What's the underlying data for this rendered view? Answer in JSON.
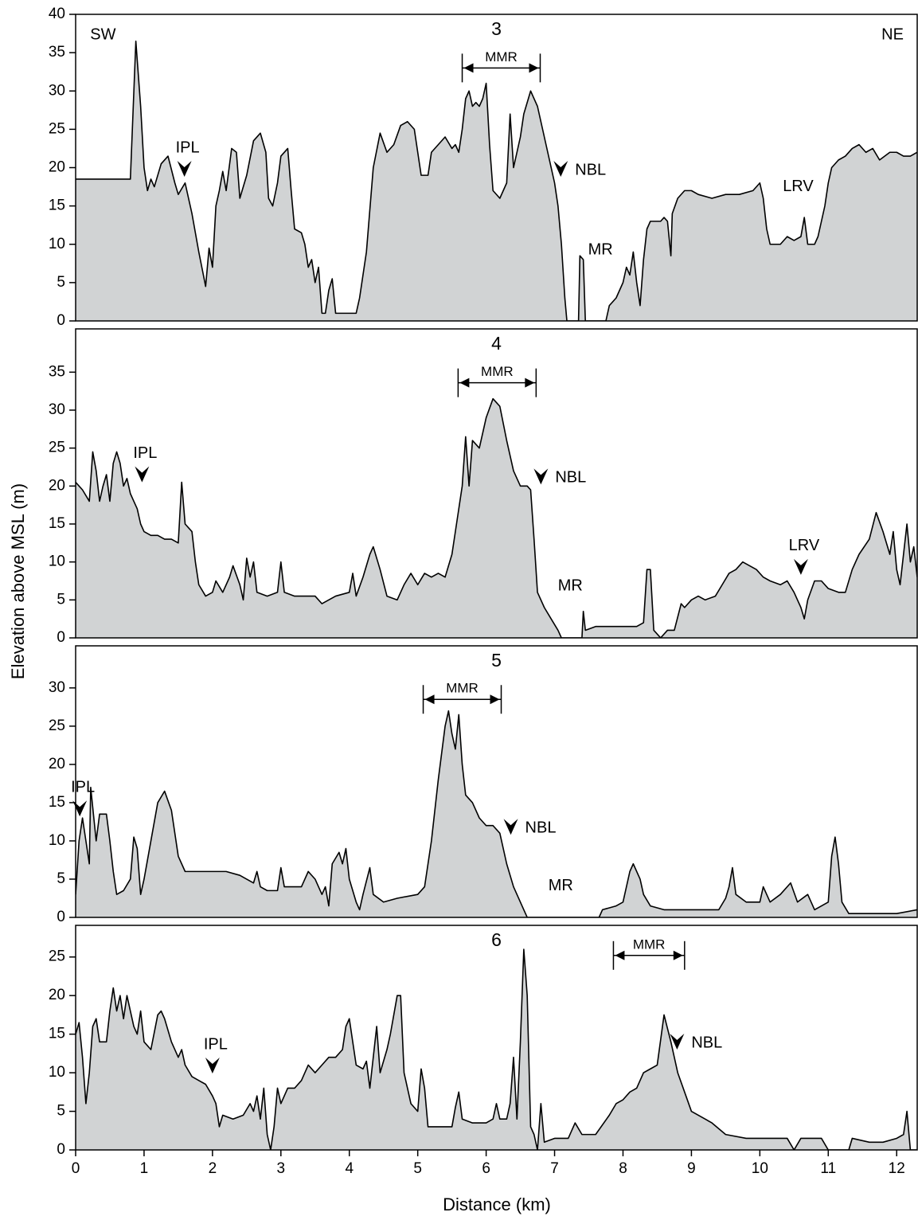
{
  "ylabel": "Elevation above MSL (m)",
  "xlabel": "Distance (km)",
  "chart_data": [
    {
      "type": "area",
      "title": "3",
      "color": "#d1d3d4",
      "line_color": "#000000",
      "xlim": [
        0,
        12.3
      ],
      "ylim": [
        0,
        40
      ],
      "yticks": [
        0,
        5,
        10,
        15,
        20,
        25,
        30,
        35,
        40
      ],
      "x": [
        0,
        0.78,
        0.8,
        0.88,
        0.95,
        1.0,
        1.05,
        1.1,
        1.15,
        1.25,
        1.35,
        1.45,
        1.5,
        1.6,
        1.7,
        1.8,
        1.9,
        1.95,
        2.0,
        2.05,
        2.1,
        2.15,
        2.2,
        2.28,
        2.35,
        2.4,
        2.5,
        2.6,
        2.7,
        2.78,
        2.82,
        2.88,
        2.95,
        3.0,
        3.1,
        3.15,
        3.2,
        3.3,
        3.35,
        3.4,
        3.45,
        3.5,
        3.55,
        3.6,
        3.65,
        3.7,
        3.75,
        3.8,
        4.1,
        4.15,
        4.25,
        4.35,
        4.45,
        4.55,
        4.65,
        4.75,
        4.85,
        4.95,
        5.0,
        5.05,
        5.15,
        5.2,
        5.3,
        5.4,
        5.5,
        5.55,
        5.6,
        5.65,
        5.7,
        5.75,
        5.8,
        5.85,
        5.9,
        5.95,
        6.0,
        6.05,
        6.1,
        6.2,
        6.25,
        6.3,
        6.35,
        6.4,
        6.5,
        6.55,
        6.65,
        6.75,
        6.85,
        6.95,
        7.0,
        7.05,
        7.1,
        7.15,
        7.18,
        7.35,
        7.37,
        7.42,
        7.45,
        7.75,
        7.8,
        7.9,
        8.0,
        8.05,
        8.1,
        8.15,
        8.2,
        8.25,
        8.3,
        8.35,
        8.4,
        8.55,
        8.6,
        8.65,
        8.7,
        8.72,
        8.8,
        8.9,
        9.0,
        9.1,
        9.3,
        9.5,
        9.7,
        9.9,
        10.0,
        10.05,
        10.1,
        10.15,
        10.3,
        10.4,
        10.5,
        10.6,
        10.65,
        10.7,
        10.8,
        10.85,
        10.95,
        11.0,
        11.05,
        11.15,
        11.25,
        11.35,
        11.45,
        11.55,
        11.65,
        11.75,
        11.9,
        12.0,
        12.1,
        12.2,
        12.3
      ],
      "values": [
        18.5,
        18.5,
        18.5,
        36.5,
        28,
        20,
        17,
        18.5,
        17.5,
        20.5,
        21.5,
        18,
        16.5,
        18,
        14,
        9,
        4.5,
        9.5,
        7,
        15,
        17,
        19.5,
        17,
        22.5,
        22,
        16,
        19,
        23.5,
        24.5,
        22,
        16,
        15,
        18,
        21.5,
        22.5,
        17,
        12,
        11.5,
        10,
        7,
        8,
        5,
        7,
        1,
        1,
        4,
        5.5,
        1,
        1,
        3,
        9,
        20,
        24.5,
        22,
        23,
        25.5,
        26,
        25,
        22,
        19,
        19,
        22,
        23,
        24,
        22.5,
        23,
        22,
        25,
        29,
        30,
        28,
        28.5,
        28,
        29,
        31,
        23,
        17,
        16,
        17,
        18,
        27,
        20,
        24,
        27,
        30,
        28,
        24,
        20,
        18,
        15,
        10,
        3,
        0,
        0,
        8.5,
        8,
        0,
        0,
        2,
        3,
        5,
        7,
        6,
        9,
        5,
        2,
        8,
        12,
        13,
        13,
        13.5,
        13,
        8.5,
        14,
        16,
        17,
        17,
        16.5,
        16,
        16.5,
        16.5,
        17,
        18,
        16,
        12,
        10,
        10,
        11,
        10.5,
        11,
        13.5,
        10,
        10,
        11,
        15,
        18,
        20,
        21,
        21.5,
        22.5,
        23,
        22,
        22.5,
        21,
        22,
        22,
        21.5,
        21.5,
        22
      ],
      "annotations": [
        {
          "text": "SW",
          "x": 0.4,
          "y": 37.3,
          "kind": "label"
        },
        {
          "text": "NE",
          "x": 11.94,
          "y": 37.3,
          "kind": "label"
        },
        {
          "text": "MMR",
          "x": [
            5.65,
            6.79
          ],
          "y": 33,
          "kind": "span"
        },
        {
          "text": "IPL",
          "x": 1.59,
          "y": 18.8,
          "kind": "arrow",
          "side": "above"
        },
        {
          "text": "NBL",
          "x": 7.09,
          "y": 18.8,
          "kind": "arrow",
          "side": "right"
        },
        {
          "text": "MR",
          "x": 7.67,
          "y": 9.2,
          "kind": "label"
        },
        {
          "text": "LRV",
          "x": 10.56,
          "y": 17.5,
          "kind": "label"
        }
      ]
    },
    {
      "type": "area",
      "title": "4",
      "color": "#d1d3d4",
      "line_color": "#000000",
      "xlim": [
        0,
        12.3
      ],
      "ylim": [
        0,
        40.7
      ],
      "yticks": [
        0,
        5,
        10,
        15,
        20,
        25,
        30,
        35
      ],
      "x": [
        0,
        0.1,
        0.2,
        0.25,
        0.3,
        0.35,
        0.4,
        0.45,
        0.5,
        0.55,
        0.6,
        0.65,
        0.7,
        0.75,
        0.8,
        0.85,
        0.9,
        0.95,
        1.0,
        1.1,
        1.2,
        1.3,
        1.4,
        1.5,
        1.55,
        1.6,
        1.7,
        1.75,
        1.8,
        1.9,
        2.0,
        2.05,
        2.15,
        2.25,
        2.3,
        2.4,
        2.45,
        2.5,
        2.55,
        2.6,
        2.65,
        2.8,
        2.95,
        3.0,
        3.05,
        3.2,
        3.5,
        3.6,
        3.8,
        4.0,
        4.05,
        4.1,
        4.2,
        4.3,
        4.35,
        4.45,
        4.55,
        4.7,
        4.8,
        4.9,
        5.0,
        5.1,
        5.2,
        5.3,
        5.4,
        5.5,
        5.6,
        5.65,
        5.7,
        5.75,
        5.8,
        5.9,
        6.0,
        6.1,
        6.2,
        6.3,
        6.4,
        6.5,
        6.6,
        6.65,
        6.7,
        6.75,
        6.85,
        6.95,
        7.05,
        7.1,
        7.4,
        7.42,
        7.45,
        7.6,
        7.8,
        8.0,
        8.2,
        8.3,
        8.35,
        8.4,
        8.45,
        8.55,
        8.65,
        8.75,
        8.85,
        8.9,
        9.0,
        9.1,
        9.2,
        9.35,
        9.45,
        9.55,
        9.65,
        9.75,
        9.85,
        9.95,
        10.05,
        10.15,
        10.3,
        10.4,
        10.5,
        10.6,
        10.65,
        10.7,
        10.8,
        10.9,
        11.0,
        11.15,
        11.25,
        11.35,
        11.45,
        11.6,
        11.7,
        11.8,
        11.9,
        11.95,
        12.0,
        12.05,
        12.1,
        12.15,
        12.2,
        12.25,
        12.3
      ],
      "values": [
        20.5,
        19.5,
        18,
        24.5,
        22,
        18,
        20,
        21.5,
        18,
        23,
        24.5,
        23,
        20,
        21,
        19,
        18,
        17,
        15,
        14,
        13.5,
        13.5,
        13,
        13,
        12.5,
        20.5,
        15,
        14,
        10,
        7,
        5.5,
        6,
        7.5,
        6,
        8,
        9.5,
        7,
        5,
        10.5,
        8,
        10,
        6,
        5.5,
        6,
        10,
        6,
        5.5,
        5.5,
        4.5,
        5.5,
        6,
        8.5,
        5.5,
        8,
        11,
        12,
        9,
        5.5,
        5,
        7,
        8.5,
        7,
        8.5,
        8,
        8.5,
        8,
        11,
        17,
        20,
        26.5,
        20,
        26,
        25,
        29,
        31.5,
        30.5,
        26,
        22,
        20,
        20,
        19.5,
        13,
        6,
        4,
        2.5,
        1,
        0,
        0,
        3.5,
        1,
        1.5,
        1.5,
        1.5,
        1.5,
        2,
        9,
        9,
        1,
        0,
        1,
        1,
        4.5,
        4,
        5,
        5.5,
        5,
        5.5,
        7,
        8.5,
        9,
        10,
        9.5,
        9,
        8,
        7.5,
        7,
        7.5,
        6,
        4,
        2.5,
        5,
        7.5,
        7.5,
        6.5,
        6,
        6,
        9,
        11,
        13,
        16.5,
        14,
        11,
        14,
        9,
        7,
        11,
        15,
        10,
        12,
        8
      ],
      "annotations": [
        {
          "text": "MMR",
          "x": [
            5.59,
            6.73
          ],
          "y": 33.6,
          "kind": "span"
        },
        {
          "text": "IPL",
          "x": 0.97,
          "y": 20.5,
          "kind": "arrow",
          "side": "above"
        },
        {
          "text": "NBL",
          "x": 6.8,
          "y": 20.2,
          "kind": "arrow",
          "side": "right"
        },
        {
          "text": "MR",
          "x": 7.23,
          "y": 6.8,
          "kind": "label"
        },
        {
          "text": "LRV",
          "x": 10.6,
          "y": 8.3,
          "kind": "arrow",
          "side": "above"
        }
      ]
    },
    {
      "type": "area",
      "title": "5",
      "color": "#d1d3d4",
      "line_color": "#000000",
      "xlim": [
        0,
        12.3
      ],
      "ylim": [
        0,
        35.5
      ],
      "yticks": [
        0,
        5,
        10,
        15,
        20,
        25,
        30
      ],
      "x": [
        0,
        0.05,
        0.1,
        0.15,
        0.2,
        0.22,
        0.3,
        0.35,
        0.45,
        0.5,
        0.55,
        0.6,
        0.7,
        0.8,
        0.85,
        0.9,
        0.95,
        1.0,
        1.1,
        1.2,
        1.3,
        1.4,
        1.5,
        1.6,
        1.8,
        2.0,
        2.2,
        2.4,
        2.6,
        2.65,
        2.7,
        2.8,
        2.95,
        3.0,
        3.05,
        3.3,
        3.4,
        3.5,
        3.6,
        3.65,
        3.7,
        3.75,
        3.85,
        3.9,
        3.95,
        4.0,
        4.1,
        4.15,
        4.2,
        4.3,
        4.35,
        4.5,
        4.7,
        5.0,
        5.1,
        5.2,
        5.3,
        5.4,
        5.45,
        5.5,
        5.55,
        5.6,
        5.65,
        5.7,
        5.8,
        5.9,
        6.0,
        6.1,
        6.2,
        6.3,
        6.4,
        6.5,
        6.55,
        6.6,
        7.65,
        7.7,
        7.9,
        8.0,
        8.1,
        8.15,
        8.25,
        8.3,
        8.4,
        8.6,
        8.8,
        9.0,
        9.2,
        9.4,
        9.5,
        9.55,
        9.6,
        9.65,
        9.8,
        10.0,
        10.05,
        10.15,
        10.3,
        10.45,
        10.55,
        10.7,
        10.8,
        11.0,
        11.05,
        11.1,
        11.15,
        11.2,
        11.3,
        11.6,
        12.0,
        12.3
      ],
      "values": [
        3,
        10,
        13,
        10,
        7,
        17,
        10,
        13.5,
        13.5,
        10,
        6,
        3,
        3.5,
        5,
        10.5,
        9,
        3,
        5,
        10,
        15,
        16.5,
        14,
        8,
        6,
        6,
        6,
        6,
        5.5,
        4.5,
        6,
        4,
        3.5,
        3.5,
        6.5,
        4,
        4,
        6,
        5,
        3,
        4,
        1.5,
        7,
        8.5,
        7,
        9,
        5,
        2,
        1,
        3,
        6.5,
        3,
        2,
        2.5,
        3,
        4,
        10,
        18,
        25,
        27,
        24,
        22,
        26.5,
        20,
        16,
        15,
        13,
        12,
        12,
        11,
        7,
        4,
        2,
        1,
        0,
        0,
        1,
        1.5,
        2,
        6,
        7,
        5,
        3,
        1.5,
        1,
        1,
        1,
        1,
        1,
        2.5,
        4,
        6.5,
        3,
        2,
        2,
        4,
        2,
        3,
        4.5,
        2,
        3,
        1,
        2,
        8,
        10.5,
        7,
        2,
        0.5,
        0.5,
        0.5,
        1
      ],
      "annotations": [
        {
          "text": "MMR",
          "x": [
            5.08,
            6.22
          ],
          "y": 28.5,
          "kind": "span"
        },
        {
          "text": "IPL",
          "x": 0.06,
          "y": 13.2,
          "kind": "arrow",
          "side": "above"
        },
        {
          "text": "NBL",
          "x": 6.36,
          "y": 10.8,
          "kind": "arrow",
          "side": "right"
        },
        {
          "text": "MR",
          "x": 7.09,
          "y": 4.1,
          "kind": "label"
        }
      ]
    },
    {
      "type": "area",
      "title": "6",
      "color": "#d1d3d4",
      "line_color": "#000000",
      "xlim": [
        0,
        12.3
      ],
      "ylim": [
        0,
        29.1
      ],
      "yticks": [
        0,
        5,
        10,
        15,
        20,
        25
      ],
      "xticks": [
        0,
        1,
        2,
        3,
        4,
        5,
        6,
        7,
        8,
        9,
        10,
        11,
        12
      ],
      "x": [
        0,
        0.05,
        0.1,
        0.15,
        0.2,
        0.25,
        0.3,
        0.35,
        0.45,
        0.5,
        0.55,
        0.6,
        0.65,
        0.7,
        0.75,
        0.85,
        0.9,
        0.95,
        1.0,
        1.1,
        1.2,
        1.25,
        1.3,
        1.4,
        1.5,
        1.55,
        1.6,
        1.7,
        1.8,
        1.9,
        2.0,
        2.05,
        2.1,
        2.15,
        2.3,
        2.45,
        2.55,
        2.6,
        2.65,
        2.7,
        2.75,
        2.8,
        2.85,
        2.9,
        2.95,
        3.0,
        3.1,
        3.2,
        3.3,
        3.4,
        3.5,
        3.6,
        3.7,
        3.8,
        3.9,
        3.95,
        4.0,
        4.05,
        4.1,
        4.2,
        4.25,
        4.3,
        4.4,
        4.45,
        4.55,
        4.6,
        4.7,
        4.75,
        4.8,
        4.9,
        5.0,
        5.05,
        5.1,
        5.15,
        5.5,
        5.55,
        5.6,
        5.65,
        5.8,
        6.0,
        6.1,
        6.15,
        6.2,
        6.3,
        6.35,
        6.4,
        6.45,
        6.5,
        6.55,
        6.6,
        6.65,
        6.7,
        6.75,
        6.8,
        6.85,
        7.0,
        7.2,
        7.3,
        7.4,
        7.6,
        7.8,
        7.9,
        8.0,
        8.1,
        8.2,
        8.3,
        8.4,
        8.5,
        8.6,
        8.7,
        8.8,
        8.9,
        9.0,
        9.2,
        9.3,
        9.5,
        9.8,
        10.0,
        10.2,
        10.4,
        10.5,
        10.6,
        10.9,
        11.0,
        11.3,
        11.35,
        11.6,
        11.8,
        12.0,
        12.1,
        12.15,
        12.2,
        12.3
      ],
      "values": [
        15,
        16.5,
        12,
        6,
        10,
        16,
        17,
        14,
        14,
        18,
        21,
        18,
        20,
        17,
        20,
        16,
        15,
        18,
        14,
        13,
        17.5,
        18,
        17,
        14,
        12,
        13,
        11,
        9.5,
        9,
        8.5,
        7,
        6,
        3,
        4.5,
        4,
        4.5,
        6,
        5,
        7,
        4,
        8,
        2,
        0,
        3,
        8,
        6,
        8,
        8,
        9,
        11,
        10,
        11,
        12,
        12,
        13,
        16,
        17,
        14,
        11,
        10.5,
        11.5,
        8,
        16,
        10,
        13,
        15,
        20,
        20,
        10,
        6,
        5,
        10.5,
        8,
        3,
        3,
        5.5,
        7.5,
        4,
        3.5,
        3.5,
        4,
        6,
        4,
        4,
        6,
        12,
        4,
        14,
        26,
        20,
        3,
        2,
        0,
        6,
        1,
        1.5,
        1.5,
        3.5,
        2,
        2,
        4.5,
        6,
        6.5,
        7.5,
        8,
        10,
        10.5,
        11,
        17.5,
        14,
        10,
        7.5,
        5,
        4,
        3.5,
        2,
        1.5,
        1.5,
        1.5,
        1.5,
        0,
        1.5,
        1.5,
        0,
        0,
        1.5,
        1,
        1,
        1.5,
        2,
        5,
        0,
        0
      ],
      "annotations": [
        {
          "text": "MMR",
          "x": [
            7.86,
            8.9
          ],
          "y": 25.2,
          "kind": "span"
        },
        {
          "text": "NBL",
          "x": 8.79,
          "y": 13,
          "kind": "arrow",
          "side": "right"
        },
        {
          "text": "IPL",
          "x": 2.0,
          "y": 9.9,
          "kind": "arrow",
          "side": "above"
        }
      ]
    }
  ]
}
